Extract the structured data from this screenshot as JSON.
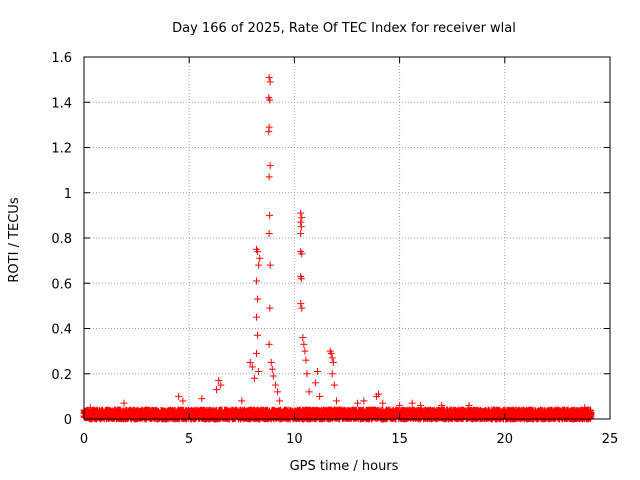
{
  "chart_data": {
    "type": "scatter",
    "title": "Day 166 of 2025, Rate Of TEC Index for receiver wlal",
    "xlabel": "GPS time / hours",
    "ylabel": "ROTI / TECUs",
    "xlim": [
      0,
      25
    ],
    "ylim": [
      0,
      1.6
    ],
    "xticks": [
      0,
      5,
      10,
      15,
      20,
      25
    ],
    "yticks": [
      0,
      0.2,
      0.4,
      0.6,
      0.8,
      1,
      1.2,
      1.4,
      1.6
    ],
    "xtick_labels": [
      "0",
      "5",
      "10",
      "15",
      "20",
      "25"
    ],
    "ytick_labels": [
      "0",
      "0.2",
      "0.4",
      "0.6",
      "0.8",
      "1",
      "1.2",
      "1.4",
      "1.6"
    ],
    "grid": true,
    "marker": "plus",
    "marker_color": "#ff0000",
    "baseline_band": {
      "x_range": [
        0,
        24.1
      ],
      "typical_max": 0.04
    },
    "series": [
      {
        "points": [
          [
            0.3,
            0.05
          ],
          [
            1.9,
            0.07
          ],
          [
            4.5,
            0.1
          ],
          [
            4.7,
            0.08
          ],
          [
            5.6,
            0.09
          ],
          [
            6.3,
            0.13
          ],
          [
            6.4,
            0.17
          ],
          [
            6.5,
            0.15
          ],
          [
            7.5,
            0.08
          ],
          [
            7.9,
            0.25
          ],
          [
            8.0,
            0.23
          ],
          [
            8.1,
            0.18
          ],
          [
            8.2,
            0.29
          ],
          [
            8.3,
            0.21
          ],
          [
            8.2,
            0.75
          ],
          [
            8.25,
            0.74
          ],
          [
            8.3,
            0.68
          ],
          [
            8.2,
            0.61
          ],
          [
            8.25,
            0.53
          ],
          [
            8.2,
            0.45
          ],
          [
            8.25,
            0.37
          ],
          [
            8.35,
            0.71
          ],
          [
            8.8,
            1.51
          ],
          [
            8.85,
            1.49
          ],
          [
            8.78,
            1.42
          ],
          [
            8.83,
            1.41
          ],
          [
            8.8,
            1.29
          ],
          [
            8.78,
            1.27
          ],
          [
            8.85,
            1.12
          ],
          [
            8.8,
            1.07
          ],
          [
            8.82,
            0.9
          ],
          [
            8.8,
            0.82
          ],
          [
            8.85,
            0.68
          ],
          [
            8.83,
            0.49
          ],
          [
            8.8,
            0.33
          ],
          [
            8.9,
            0.25
          ],
          [
            8.95,
            0.22
          ],
          [
            9.0,
            0.19
          ],
          [
            9.1,
            0.15
          ],
          [
            9.2,
            0.12
          ],
          [
            9.3,
            0.08
          ],
          [
            10.3,
            0.91
          ],
          [
            10.35,
            0.89
          ],
          [
            10.3,
            0.87
          ],
          [
            10.33,
            0.85
          ],
          [
            10.3,
            0.82
          ],
          [
            10.3,
            0.74
          ],
          [
            10.35,
            0.73
          ],
          [
            10.3,
            0.63
          ],
          [
            10.33,
            0.62
          ],
          [
            10.3,
            0.51
          ],
          [
            10.35,
            0.49
          ],
          [
            10.4,
            0.36
          ],
          [
            10.45,
            0.33
          ],
          [
            10.5,
            0.3
          ],
          [
            10.55,
            0.26
          ],
          [
            10.6,
            0.2
          ],
          [
            10.7,
            0.12
          ],
          [
            11.0,
            0.16
          ],
          [
            11.1,
            0.21
          ],
          [
            11.2,
            0.1
          ],
          [
            11.7,
            0.3
          ],
          [
            11.75,
            0.29
          ],
          [
            11.8,
            0.27
          ],
          [
            11.85,
            0.25
          ],
          [
            11.8,
            0.2
          ],
          [
            11.9,
            0.15
          ],
          [
            12.0,
            0.08
          ],
          [
            13.0,
            0.07
          ],
          [
            13.3,
            0.08
          ],
          [
            13.9,
            0.1
          ],
          [
            14.0,
            0.11
          ],
          [
            14.2,
            0.07
          ],
          [
            15.0,
            0.06
          ],
          [
            15.6,
            0.07
          ],
          [
            16.0,
            0.06
          ],
          [
            17.0,
            0.06
          ],
          [
            18.3,
            0.06
          ],
          [
            21.7,
            0.04
          ],
          [
            22.4,
            0.04
          ],
          [
            23.0,
            0.04
          ],
          [
            23.8,
            0.05
          ],
          [
            24.0,
            0.04
          ]
        ]
      }
    ]
  }
}
